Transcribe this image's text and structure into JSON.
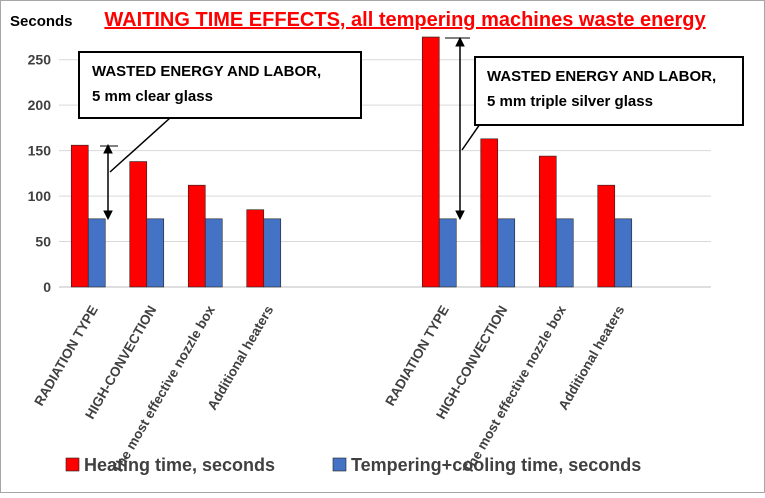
{
  "chart_data": {
    "type": "bar",
    "title": "WAITING TIME EFFECTS, all tempering machines waste energy",
    "y_label": "Seconds",
    "categories": [
      "RADIATION TYPE",
      "HIGH-CONVECTION",
      "The most effective nozzle box",
      "Additional heaters",
      null,
      null,
      "RADIATION TYPE",
      "HIGH-CONVECTION",
      "The most effective nozzle box",
      "Additional heaters",
      null
    ],
    "series": [
      {
        "name": "Heating time, seconds",
        "color": "#ff0000",
        "values": [
          156,
          138,
          112,
          85,
          null,
          null,
          275,
          163,
          144,
          112,
          null
        ]
      },
      {
        "name": "Tempering+cooling time, seconds",
        "color": "#4472c4",
        "values": [
          75,
          75,
          75,
          75,
          null,
          null,
          75,
          75,
          75,
          75,
          null
        ]
      }
    ],
    "ylim": [
      0,
      275
    ],
    "yticks": [
      0,
      50,
      100,
      150,
      200,
      250
    ],
    "grid": true,
    "annotations": [
      [
        "WASTED ENERGY AND LABOR,",
        "5 mm clear glass"
      ],
      [
        "WASTED ENERGY AND LABOR,",
        "5 mm triple silver glass"
      ]
    ]
  }
}
